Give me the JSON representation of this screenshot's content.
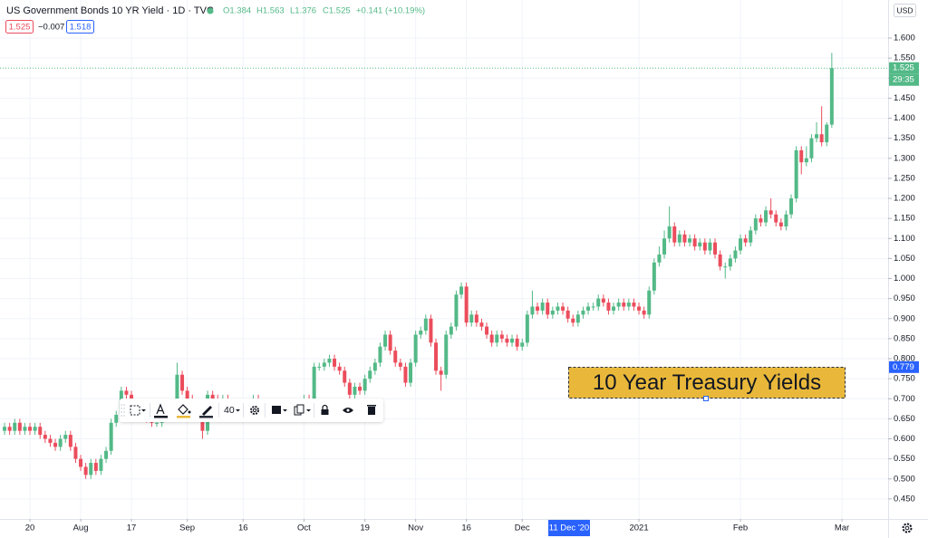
{
  "chart_data": {
    "type": "candlestick",
    "open": [
      0.62,
      0.63,
      0.62,
      0.64,
      0.62,
      0.63,
      0.62,
      0.63,
      0.61,
      0.6,
      0.59,
      0.58,
      0.6,
      0.61,
      0.58,
      0.55,
      0.53,
      0.51,
      0.54,
      0.52,
      0.55,
      0.57,
      0.64,
      0.66,
      0.72,
      0.71,
      0.68,
      0.67,
      0.66,
      0.65,
      0.64,
      0.64,
      0.66,
      0.69,
      0.69,
      0.76,
      0.72,
      0.7,
      0.69,
      0.66,
      0.62,
      0.71,
      0.7,
      0.69,
      0.7,
      0.68,
      0.68,
      0.69,
      0.68,
      0.69,
      0.7,
      0.69,
      0.68,
      0.67,
      0.68,
      0.67,
      0.66,
      0.67,
      0.69,
      0.68,
      0.7,
      0.69,
      0.78,
      0.78,
      0.79,
      0.8,
      0.78,
      0.77,
      0.74,
      0.71,
      0.73,
      0.72,
      0.75,
      0.77,
      0.79,
      0.83,
      0.86,
      0.82,
      0.79,
      0.78,
      0.74,
      0.79,
      0.86,
      0.87,
      0.9,
      0.84,
      0.77,
      0.76,
      0.86,
      0.88,
      0.96,
      0.98,
      0.89,
      0.91,
      0.89,
      0.88,
      0.86,
      0.84,
      0.86,
      0.85,
      0.84,
      0.85,
      0.83,
      0.84,
      0.91,
      0.93,
      0.92,
      0.94,
      0.91,
      0.92,
      0.93,
      0.92,
      0.9,
      0.89,
      0.91,
      0.92,
      0.93,
      0.93,
      0.95,
      0.94,
      0.92,
      0.93,
      0.94,
      0.93,
      0.94,
      0.93,
      0.92,
      0.91,
      0.97,
      1.04,
      1.06,
      1.1,
      1.13,
      1.09,
      1.11,
      1.09,
      1.1,
      1.08,
      1.09,
      1.07,
      1.09,
      1.06,
      1.03,
      1.03,
      1.05,
      1.07,
      1.1,
      1.09,
      1.12,
      1.15,
      1.14,
      1.17,
      1.16,
      1.14,
      1.13,
      1.16,
      1.2,
      1.32,
      1.29,
      1.3,
      1.35,
      1.36,
      1.34,
      1.384
    ],
    "high": [
      0.64,
      0.64,
      0.65,
      0.65,
      0.64,
      0.64,
      0.64,
      0.64,
      0.62,
      0.61,
      0.6,
      0.61,
      0.62,
      0.62,
      0.59,
      0.56,
      0.54,
      0.55,
      0.55,
      0.56,
      0.58,
      0.65,
      0.67,
      0.73,
      0.73,
      0.72,
      0.69,
      0.68,
      0.67,
      0.66,
      0.65,
      0.67,
      0.7,
      0.7,
      0.79,
      0.77,
      0.73,
      0.71,
      0.7,
      0.67,
      0.72,
      0.72,
      0.71,
      0.71,
      0.71,
      0.69,
      0.7,
      0.7,
      0.7,
      0.71,
      0.71,
      0.7,
      0.69,
      0.69,
      0.69,
      0.68,
      0.68,
      0.7,
      0.7,
      0.71,
      0.71,
      0.79,
      0.79,
      0.8,
      0.81,
      0.81,
      0.79,
      0.78,
      0.75,
      0.74,
      0.74,
      0.76,
      0.78,
      0.8,
      0.84,
      0.87,
      0.87,
      0.83,
      0.8,
      0.79,
      0.8,
      0.87,
      0.88,
      0.91,
      0.91,
      0.85,
      0.78,
      0.87,
      0.89,
      0.97,
      0.99,
      0.99,
      0.92,
      0.92,
      0.9,
      0.89,
      0.87,
      0.87,
      0.87,
      0.86,
      0.86,
      0.86,
      0.85,
      0.92,
      0.97,
      0.94,
      0.95,
      0.95,
      0.93,
      0.94,
      0.94,
      0.93,
      0.91,
      0.92,
      0.93,
      0.94,
      0.94,
      0.96,
      0.96,
      0.95,
      0.94,
      0.95,
      0.95,
      0.95,
      0.95,
      0.94,
      0.93,
      0.98,
      1.05,
      1.08,
      1.12,
      1.18,
      1.14,
      1.12,
      1.12,
      1.11,
      1.11,
      1.1,
      1.1,
      1.1,
      1.1,
      1.07,
      1.04,
      1.06,
      1.08,
      1.11,
      1.11,
      1.13,
      1.16,
      1.16,
      1.18,
      1.2,
      1.17,
      1.15,
      1.17,
      1.21,
      1.33,
      1.33,
      1.33,
      1.36,
      1.39,
      1.43,
      1.39,
      1.563
    ],
    "low": [
      0.61,
      0.61,
      0.61,
      0.61,
      0.61,
      0.61,
      0.61,
      0.6,
      0.59,
      0.58,
      0.57,
      0.57,
      0.59,
      0.57,
      0.54,
      0.52,
      0.5,
      0.5,
      0.51,
      0.51,
      0.54,
      0.56,
      0.63,
      0.65,
      0.7,
      0.67,
      0.66,
      0.65,
      0.64,
      0.63,
      0.63,
      0.63,
      0.65,
      0.68,
      0.68,
      0.71,
      0.69,
      0.68,
      0.65,
      0.6,
      0.61,
      0.69,
      0.68,
      0.68,
      0.67,
      0.67,
      0.67,
      0.67,
      0.67,
      0.68,
      0.68,
      0.67,
      0.66,
      0.66,
      0.66,
      0.65,
      0.65,
      0.66,
      0.67,
      0.67,
      0.68,
      0.68,
      0.77,
      0.77,
      0.78,
      0.77,
      0.76,
      0.73,
      0.7,
      0.7,
      0.71,
      0.71,
      0.74,
      0.76,
      0.78,
      0.82,
      0.81,
      0.78,
      0.77,
      0.73,
      0.73,
      0.78,
      0.85,
      0.86,
      0.83,
      0.76,
      0.72,
      0.75,
      0.85,
      0.87,
      0.95,
      0.88,
      0.88,
      0.88,
      0.87,
      0.85,
      0.83,
      0.83,
      0.84,
      0.83,
      0.83,
      0.82,
      0.82,
      0.83,
      0.9,
      0.91,
      0.91,
      0.9,
      0.9,
      0.91,
      0.91,
      0.89,
      0.88,
      0.88,
      0.9,
      0.91,
      0.92,
      0.92,
      0.93,
      0.91,
      0.91,
      0.92,
      0.92,
      0.92,
      0.92,
      0.91,
      0.9,
      0.9,
      0.96,
      1.03,
      1.05,
      1.09,
      1.08,
      1.08,
      1.08,
      1.08,
      1.07,
      1.07,
      1.06,
      1.06,
      1.05,
      1.02,
      1.0,
      1.02,
      1.04,
      1.06,
      1.08,
      1.08,
      1.11,
      1.13,
      1.13,
      1.15,
      1.13,
      1.12,
      1.12,
      1.15,
      1.19,
      1.26,
      1.28,
      1.29,
      1.34,
      1.33,
      1.33,
      1.376
    ],
    "close": [
      0.63,
      0.62,
      0.64,
      0.62,
      0.63,
      0.62,
      0.63,
      0.61,
      0.6,
      0.59,
      0.58,
      0.6,
      0.61,
      0.58,
      0.55,
      0.53,
      0.51,
      0.54,
      0.52,
      0.55,
      0.57,
      0.64,
      0.66,
      0.72,
      0.71,
      0.68,
      0.67,
      0.66,
      0.65,
      0.64,
      0.64,
      0.66,
      0.69,
      0.69,
      0.76,
      0.72,
      0.7,
      0.69,
      0.66,
      0.62,
      0.71,
      0.7,
      0.69,
      0.7,
      0.68,
      0.68,
      0.69,
      0.68,
      0.69,
      0.7,
      0.69,
      0.68,
      0.67,
      0.68,
      0.67,
      0.66,
      0.67,
      0.69,
      0.68,
      0.7,
      0.69,
      0.78,
      0.78,
      0.79,
      0.8,
      0.78,
      0.77,
      0.74,
      0.71,
      0.73,
      0.72,
      0.75,
      0.77,
      0.79,
      0.83,
      0.86,
      0.82,
      0.79,
      0.78,
      0.74,
      0.79,
      0.86,
      0.87,
      0.9,
      0.84,
      0.77,
      0.76,
      0.86,
      0.88,
      0.96,
      0.98,
      0.89,
      0.91,
      0.89,
      0.88,
      0.86,
      0.84,
      0.86,
      0.85,
      0.84,
      0.85,
      0.83,
      0.84,
      0.91,
      0.93,
      0.92,
      0.94,
      0.91,
      0.92,
      0.93,
      0.92,
      0.9,
      0.89,
      0.91,
      0.92,
      0.93,
      0.93,
      0.95,
      0.94,
      0.92,
      0.93,
      0.94,
      0.93,
      0.94,
      0.93,
      0.92,
      0.91,
      0.97,
      1.04,
      1.06,
      1.1,
      1.13,
      1.09,
      1.11,
      1.09,
      1.1,
      1.08,
      1.09,
      1.07,
      1.09,
      1.06,
      1.03,
      1.03,
      1.05,
      1.07,
      1.1,
      1.09,
      1.12,
      1.15,
      1.14,
      1.17,
      1.16,
      1.14,
      1.13,
      1.16,
      1.2,
      1.32,
      1.29,
      1.3,
      1.35,
      1.36,
      1.34,
      1.384,
      1.525
    ],
    "up_color": "#53b987",
    "down_color": "#eb4d5c",
    "ylim": [
      0.4,
      1.695
    ],
    "yticks": [
      {
        "value": 0.45,
        "label": "0.450"
      },
      {
        "value": 0.5,
        "label": "0.500"
      },
      {
        "value": 0.55,
        "label": "0.550"
      },
      {
        "value": 0.6,
        "label": "0.600"
      },
      {
        "value": 0.65,
        "label": "0.650"
      },
      {
        "value": 0.7,
        "label": "0.700"
      },
      {
        "value": 0.75,
        "label": "0.750"
      },
      {
        "value": 0.8,
        "label": "0.800"
      },
      {
        "value": 0.85,
        "label": "0.850"
      },
      {
        "value": 0.9,
        "label": "0.900"
      },
      {
        "value": 0.95,
        "label": "0.950"
      },
      {
        "value": 1.0,
        "label": "1.000"
      },
      {
        "value": 1.05,
        "label": "1.050"
      },
      {
        "value": 1.1,
        "label": "1.100"
      },
      {
        "value": 1.15,
        "label": "1.150"
      },
      {
        "value": 1.2,
        "label": "1.200"
      },
      {
        "value": 1.25,
        "label": "1.250"
      },
      {
        "value": 1.3,
        "label": "1.300"
      },
      {
        "value": 1.35,
        "label": "1.350"
      },
      {
        "value": 1.4,
        "label": "1.400"
      },
      {
        "value": 1.45,
        "label": "1.450"
      },
      {
        "value": 1.5,
        "label": "1.500"
      },
      {
        "value": 1.55,
        "label": "1.550"
      },
      {
        "value": 1.6,
        "label": "1.600"
      }
    ],
    "xlim": [
      -0.9,
      174.1
    ],
    "xticks": [
      {
        "value": 5,
        "label": "20"
      },
      {
        "value": 15,
        "label": "Aug"
      },
      {
        "value": 25,
        "label": "17"
      },
      {
        "value": 36,
        "label": "Sep"
      },
      {
        "value": 47,
        "label": "16"
      },
      {
        "value": 59,
        "label": "Oct"
      },
      {
        "value": 71,
        "label": "19"
      },
      {
        "value": 81,
        "label": "Nov"
      },
      {
        "value": 91,
        "label": "16"
      },
      {
        "value": 102,
        "label": "Dec"
      },
      {
        "value": 125,
        "label": "2021"
      },
      {
        "value": 145,
        "label": "Feb"
      },
      {
        "value": 165,
        "label": "Mar"
      }
    ],
    "grid": true,
    "currency": "USD",
    "last_price": {
      "value": 1.525,
      "label": "1.525"
    },
    "countdown": "29:35",
    "crosshair_price": 0.779,
    "crosshair_date": "11 Dec '20"
  },
  "header": {
    "title": "US Government Bonds 10 YR Yield · 1D · TVC",
    "ohlc": [
      "O1.384",
      "H1.563",
      "L1.376",
      "C1.525",
      "+0.141 (+10.19%)"
    ],
    "sell": "1.525",
    "spread": "−0.007",
    "buy": "1.518"
  },
  "toolbar": {
    "font_size": 40
  },
  "annotation": {
    "text": "10 Year Treasury Yields"
  }
}
